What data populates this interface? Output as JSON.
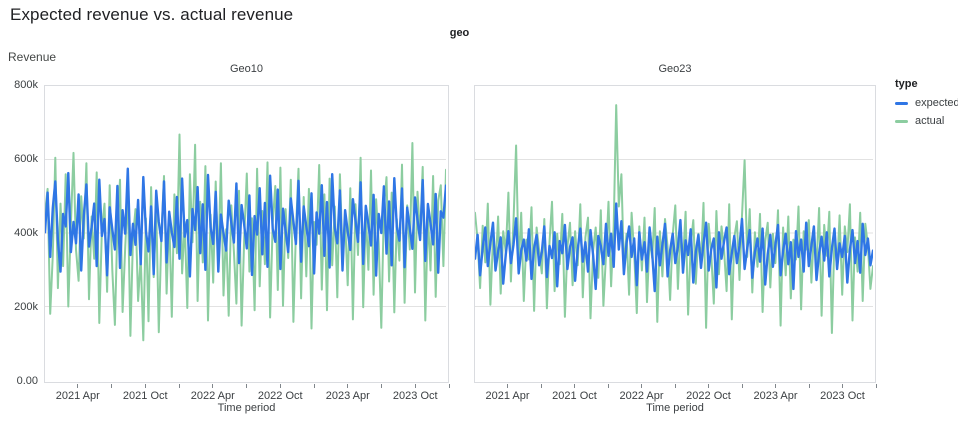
{
  "page": {
    "title": "Expected revenue vs. actual revenue"
  },
  "chart": {
    "facet_field_label": "geo",
    "y_axis_title": "Revenue",
    "x_axis_title": "Time period",
    "colors": {
      "expected": "#2F76E5",
      "actual": "#8CCDA0",
      "grid": "#E2E2E2",
      "border": "#DADCE0"
    },
    "y_axis": {
      "ticks": [
        {
          "label": "800k",
          "value_k": 800
        },
        {
          "label": "600k",
          "value_k": 600
        },
        {
          "label": "400k",
          "value_k": 400
        },
        {
          "label": "200k",
          "value_k": 200
        },
        {
          "label": "0.00",
          "value_k": 0
        }
      ],
      "grid_values_k": [
        600,
        400,
        200
      ],
      "max_k": 800
    },
    "x_axis": {
      "months_total": 36,
      "tick_months": [
        3,
        6,
        9,
        12,
        15,
        18,
        21,
        24,
        27,
        30,
        33,
        36
      ],
      "label_months": [
        3,
        9,
        15,
        21,
        27,
        33
      ],
      "labels": [
        "2021 Apr",
        "2021 Oct",
        "2022 Apr",
        "2022 Oct",
        "2023 Apr",
        "2023 Oct"
      ]
    },
    "legend": {
      "title": "type",
      "items": [
        {
          "label": "expected",
          "color": "#2F76E5"
        },
        {
          "label": "actual",
          "color": "#8CCDA0"
        }
      ]
    }
  },
  "chart_data": [
    {
      "type": "line",
      "title": "Geo10",
      "xlabel": "Time period",
      "ylabel": "Revenue",
      "ylim_k": [
        0,
        800
      ],
      "x_start": "2021-01",
      "x_end": "2023-12",
      "x_interval": "week",
      "x_tick_labels": [
        "2021 Apr",
        "2021 Oct",
        "2022 Apr",
        "2022 Oct",
        "2023 Apr",
        "2023 Oct"
      ],
      "y_tick_labels": [
        "0.00",
        "200k",
        "400k",
        "600k",
        "800k"
      ],
      "values_unit": "thousands",
      "series": [
        {
          "name": "expected",
          "color": "#2F76E5",
          "values_k": [
            402,
            510,
            335,
            468,
            540,
            380,
            295,
            452,
            418,
            563,
            348,
            430,
            372,
            505,
            298,
            447,
            532,
            363,
            415,
            480,
            310,
            545,
            392,
            438,
            285,
            470,
            410,
            355,
            528,
            305,
            462,
            398,
            575,
            340,
            425,
            368,
            490,
            315,
            552,
            405,
            350,
            472,
            288,
            515,
            430,
            378,
            540,
            320,
            458,
            402,
            362,
            498,
            330,
            548,
            390,
            435,
            282,
            465,
            408,
            525,
            345,
            478,
            300,
            558,
            415,
            370,
            512,
            295,
            450,
            400,
            352,
            488,
            428,
            374,
            535,
            318,
            476,
            422,
            358,
            502,
            286,
            446,
            396,
            522,
            342,
            482,
            308,
            556,
            412,
            376,
            518,
            302,
            466,
            406,
            348,
            494,
            432,
            370,
            542,
            322,
            472,
            418,
            364,
            508,
            290,
            456,
            398,
            530,
            338,
            484,
            306,
            560,
            414,
            372,
            516,
            298,
            462,
            404,
            354,
            492,
            434,
            376,
            538,
            316,
            474,
            424,
            366,
            504,
            284,
            452,
            400,
            527,
            344,
            486,
            312,
            549,
            417,
            379,
            521,
            307,
            469,
            413,
            357,
            497,
            436,
            381,
            544,
            324,
            479,
            426,
            369,
            506,
            292,
            459,
            442,
            529
          ]
        },
        {
          "name": "actual",
          "color": "#8CCDA0",
          "values_k": [
            455,
            520,
            180,
            340,
            605,
            250,
            480,
            310,
            560,
            200,
            425,
            618,
            355,
            270,
            500,
            385,
            590,
            220,
            445,
            330,
            565,
            155,
            410,
            480,
            240,
            530,
            300,
            150,
            420,
            545,
            185,
            360,
            510,
            120,
            390,
            465,
            215,
            335,
            108,
            440,
            160,
            525,
            280,
            470,
            130,
            395,
            555,
            235,
            448,
            172,
            505,
            345,
            668,
            290,
            430,
            196,
            560,
            375,
            640,
            215,
            485,
            320,
            582,
            162,
            450,
            265,
            540,
            310,
            590,
            230,
            410,
            175,
            475,
            350,
            208,
            515,
            148,
            385,
            562,
            295,
            440,
            190,
            575,
            255,
            460,
            315,
            592,
            170,
            428,
            528,
            245,
            578,
            202,
            465,
            332,
            545,
            158,
            402,
            575,
            222,
            498,
            282,
            520,
            140,
            430,
            368,
            585,
            246,
            505,
            190,
            548,
            312,
            472,
            225,
            560,
            348,
            435,
            258,
            522,
            165,
            478,
            340,
            605,
            198,
            452,
            300,
            570,
            232,
            492,
            372,
            142,
            468,
            552,
            268,
            510,
            184,
            438,
            325,
            586,
            210,
            475,
            355,
            645,
            238,
            512,
            390,
            580,
            162,
            445,
            298,
            555,
            226,
            488,
            530,
            310,
            572
          ]
        }
      ]
    },
    {
      "type": "line",
      "title": "Geo23",
      "xlabel": "Time period",
      "ylabel": "Revenue",
      "ylim_k": [
        0,
        800
      ],
      "x_start": "2021-01",
      "x_end": "2023-12",
      "x_interval": "week",
      "x_tick_labels": [
        "2021 Apr",
        "2021 Oct",
        "2022 Apr",
        "2022 Oct",
        "2023 Apr",
        "2023 Oct"
      ],
      "y_tick_labels": [
        "0.00",
        "200k",
        "400k",
        "600k",
        "800k"
      ],
      "values_unit": "thousands",
      "series": [
        {
          "name": "expected",
          "color": "#2F76E5",
          "values_k": [
            330,
            395,
            285,
            360,
            415,
            310,
            372,
            428,
            298,
            350,
            388,
            262,
            342,
            405,
            318,
            368,
            440,
            290,
            352,
            382,
            325,
            410,
            275,
            358,
            395,
            312,
            348,
            418,
            280,
            365,
            332,
            402,
            255,
            378,
            345,
            422,
            302,
            362,
            388,
            270,
            355,
            412,
            322,
            375,
            295,
            408,
            340,
            248,
            392,
            365,
            315,
            425,
            338,
            398,
            308,
            480,
            355,
            432,
            288,
            372,
            418,
            335,
            385,
            258,
            402,
            328,
            375,
            295,
            415,
            345,
            242,
            390,
            312,
            368,
            425,
            282,
            352,
            398,
            318,
            362,
            435,
            292,
            380,
            340,
            410,
            265,
            348,
            395,
            305,
            372,
            428,
            298,
            355,
            385,
            252,
            402,
            330,
            378,
            415,
            288,
            345,
            392,
            318,
            365,
            438,
            302,
            358,
            408,
            278,
            348,
            385,
            322,
            412,
            260,
            342,
            395,
            308,
            368,
            422,
            285,
            352,
            398,
            315,
            375,
            248,
            405,
            335,
            382,
            295,
            428,
            310,
            365,
            418,
            272,
            345,
            390,
            325,
            402,
            282,
            358,
            412,
            302,
            372,
            335,
            392,
            265,
            355,
            408,
            318,
            378,
            292,
            425,
            340,
            385,
            312,
            352
          ]
        },
        {
          "name": "actual",
          "color": "#8CCDA0",
          "values_k": [
            455,
            380,
            250,
            420,
            320,
            480,
            205,
            390,
            300,
            445,
            235,
            405,
            348,
            510,
            268,
            432,
            638,
            310,
            455,
            215,
            382,
            328,
            470,
            188,
            415,
            352,
            290,
            438,
            195,
            375,
            485,
            242,
            398,
            315,
            452,
            172,
            362,
            428,
            258,
            405,
            312,
            478,
            225,
            388,
            442,
            168,
            352,
            415,
            278,
            462,
            202,
            340,
            485,
            255,
            420,
            748,
            472,
            560,
            305,
            398,
            232,
            455,
            345,
            182,
            418,
            298,
            442,
            212,
            385,
            332,
            468,
            158,
            405,
            282,
            438,
            362,
            218,
            395,
            475,
            248,
            412,
            325,
            458,
            178,
            368,
            435,
            262,
            398,
            318,
            482,
            142,
            425,
            345,
            208,
            460,
            288,
            418,
            352,
            242,
            478,
            165,
            388,
            432,
            272,
            448,
            598,
            335,
            465,
            238,
            402,
            308,
            452,
            185,
            378,
            428,
            252,
            398,
            318,
            462,
            148,
            415,
            285,
            445,
            222,
            382,
            328,
            472,
            192,
            405,
            355,
            435,
            265,
            398,
            312,
            468,
            175,
            422,
            338,
            458,
            128,
            392,
            302,
            448,
            232,
            418,
            348,
            478,
            162,
            388,
            295,
            455,
            215,
            425,
            365,
            248,
            310
          ]
        }
      ]
    }
  ]
}
